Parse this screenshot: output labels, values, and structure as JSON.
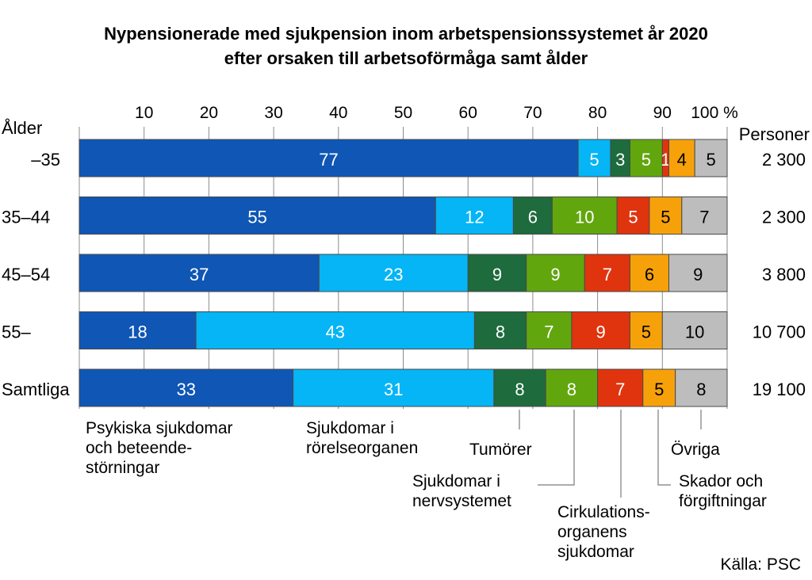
{
  "chart_data": {
    "type": "bar",
    "stacked": true,
    "orientation": "horizontal",
    "title": "Nypensionerade med sjukpension inom arbetspensionssystemet år 2020",
    "subtitle": "efter orsaken till arbetsoförmåga samt ålder",
    "row_axis_label": "Ålder",
    "right_column_label": "Personer",
    "xlim": [
      0,
      100
    ],
    "xticks": [
      "10",
      "20",
      "30",
      "40",
      "50",
      "60",
      "70",
      "80",
      "90",
      "100 %"
    ],
    "categories": [
      "–35",
      "35–44",
      "45–54",
      "55–",
      "Samtliga"
    ],
    "persons": [
      "2 300",
      "2 300",
      "3 800",
      "10 700",
      "19 100"
    ],
    "series": [
      {
        "name": "Psykiska sjukdomar och beteende-störningar",
        "color": "#0f56b5",
        "values": [
          77,
          55,
          37,
          18,
          33
        ]
      },
      {
        "name": "Sjukdomar i rörelseorganen",
        "color": "#05b5f5",
        "values": [
          5,
          12,
          23,
          43,
          31
        ]
      },
      {
        "name": "Tumörer",
        "color": "#1e6b3d",
        "values": [
          3,
          6,
          9,
          8,
          8
        ]
      },
      {
        "name": "Sjukdomar i nervsystemet",
        "color": "#62a60e",
        "values": [
          5,
          10,
          9,
          7,
          8
        ]
      },
      {
        "name": "Cirkulations-organens sjukdomar",
        "color": "#e0340e",
        "values": [
          1,
          5,
          7,
          9,
          7
        ]
      },
      {
        "name": "Skador och förgiftningar",
        "color": "#f7a10a",
        "values": [
          4,
          5,
          6,
          5,
          5
        ]
      },
      {
        "name": "Övriga",
        "color": "#bdbdbd",
        "values": [
          5,
          7,
          9,
          10,
          8
        ]
      }
    ],
    "legend_lines": [
      [
        "Psykiska sjukdomar",
        "och beteende-",
        "störningar"
      ],
      [
        "Sjukdomar i",
        "rörelseorganen"
      ],
      [
        "Tumörer"
      ],
      [
        "Sjukdomar i",
        "nervsystemet"
      ],
      [
        "Cirkulations-",
        "organens",
        "sjukdomar"
      ],
      [
        "Skador och",
        "förgiftningar"
      ],
      [
        "Övriga"
      ]
    ],
    "source": "Källa: PSC"
  }
}
